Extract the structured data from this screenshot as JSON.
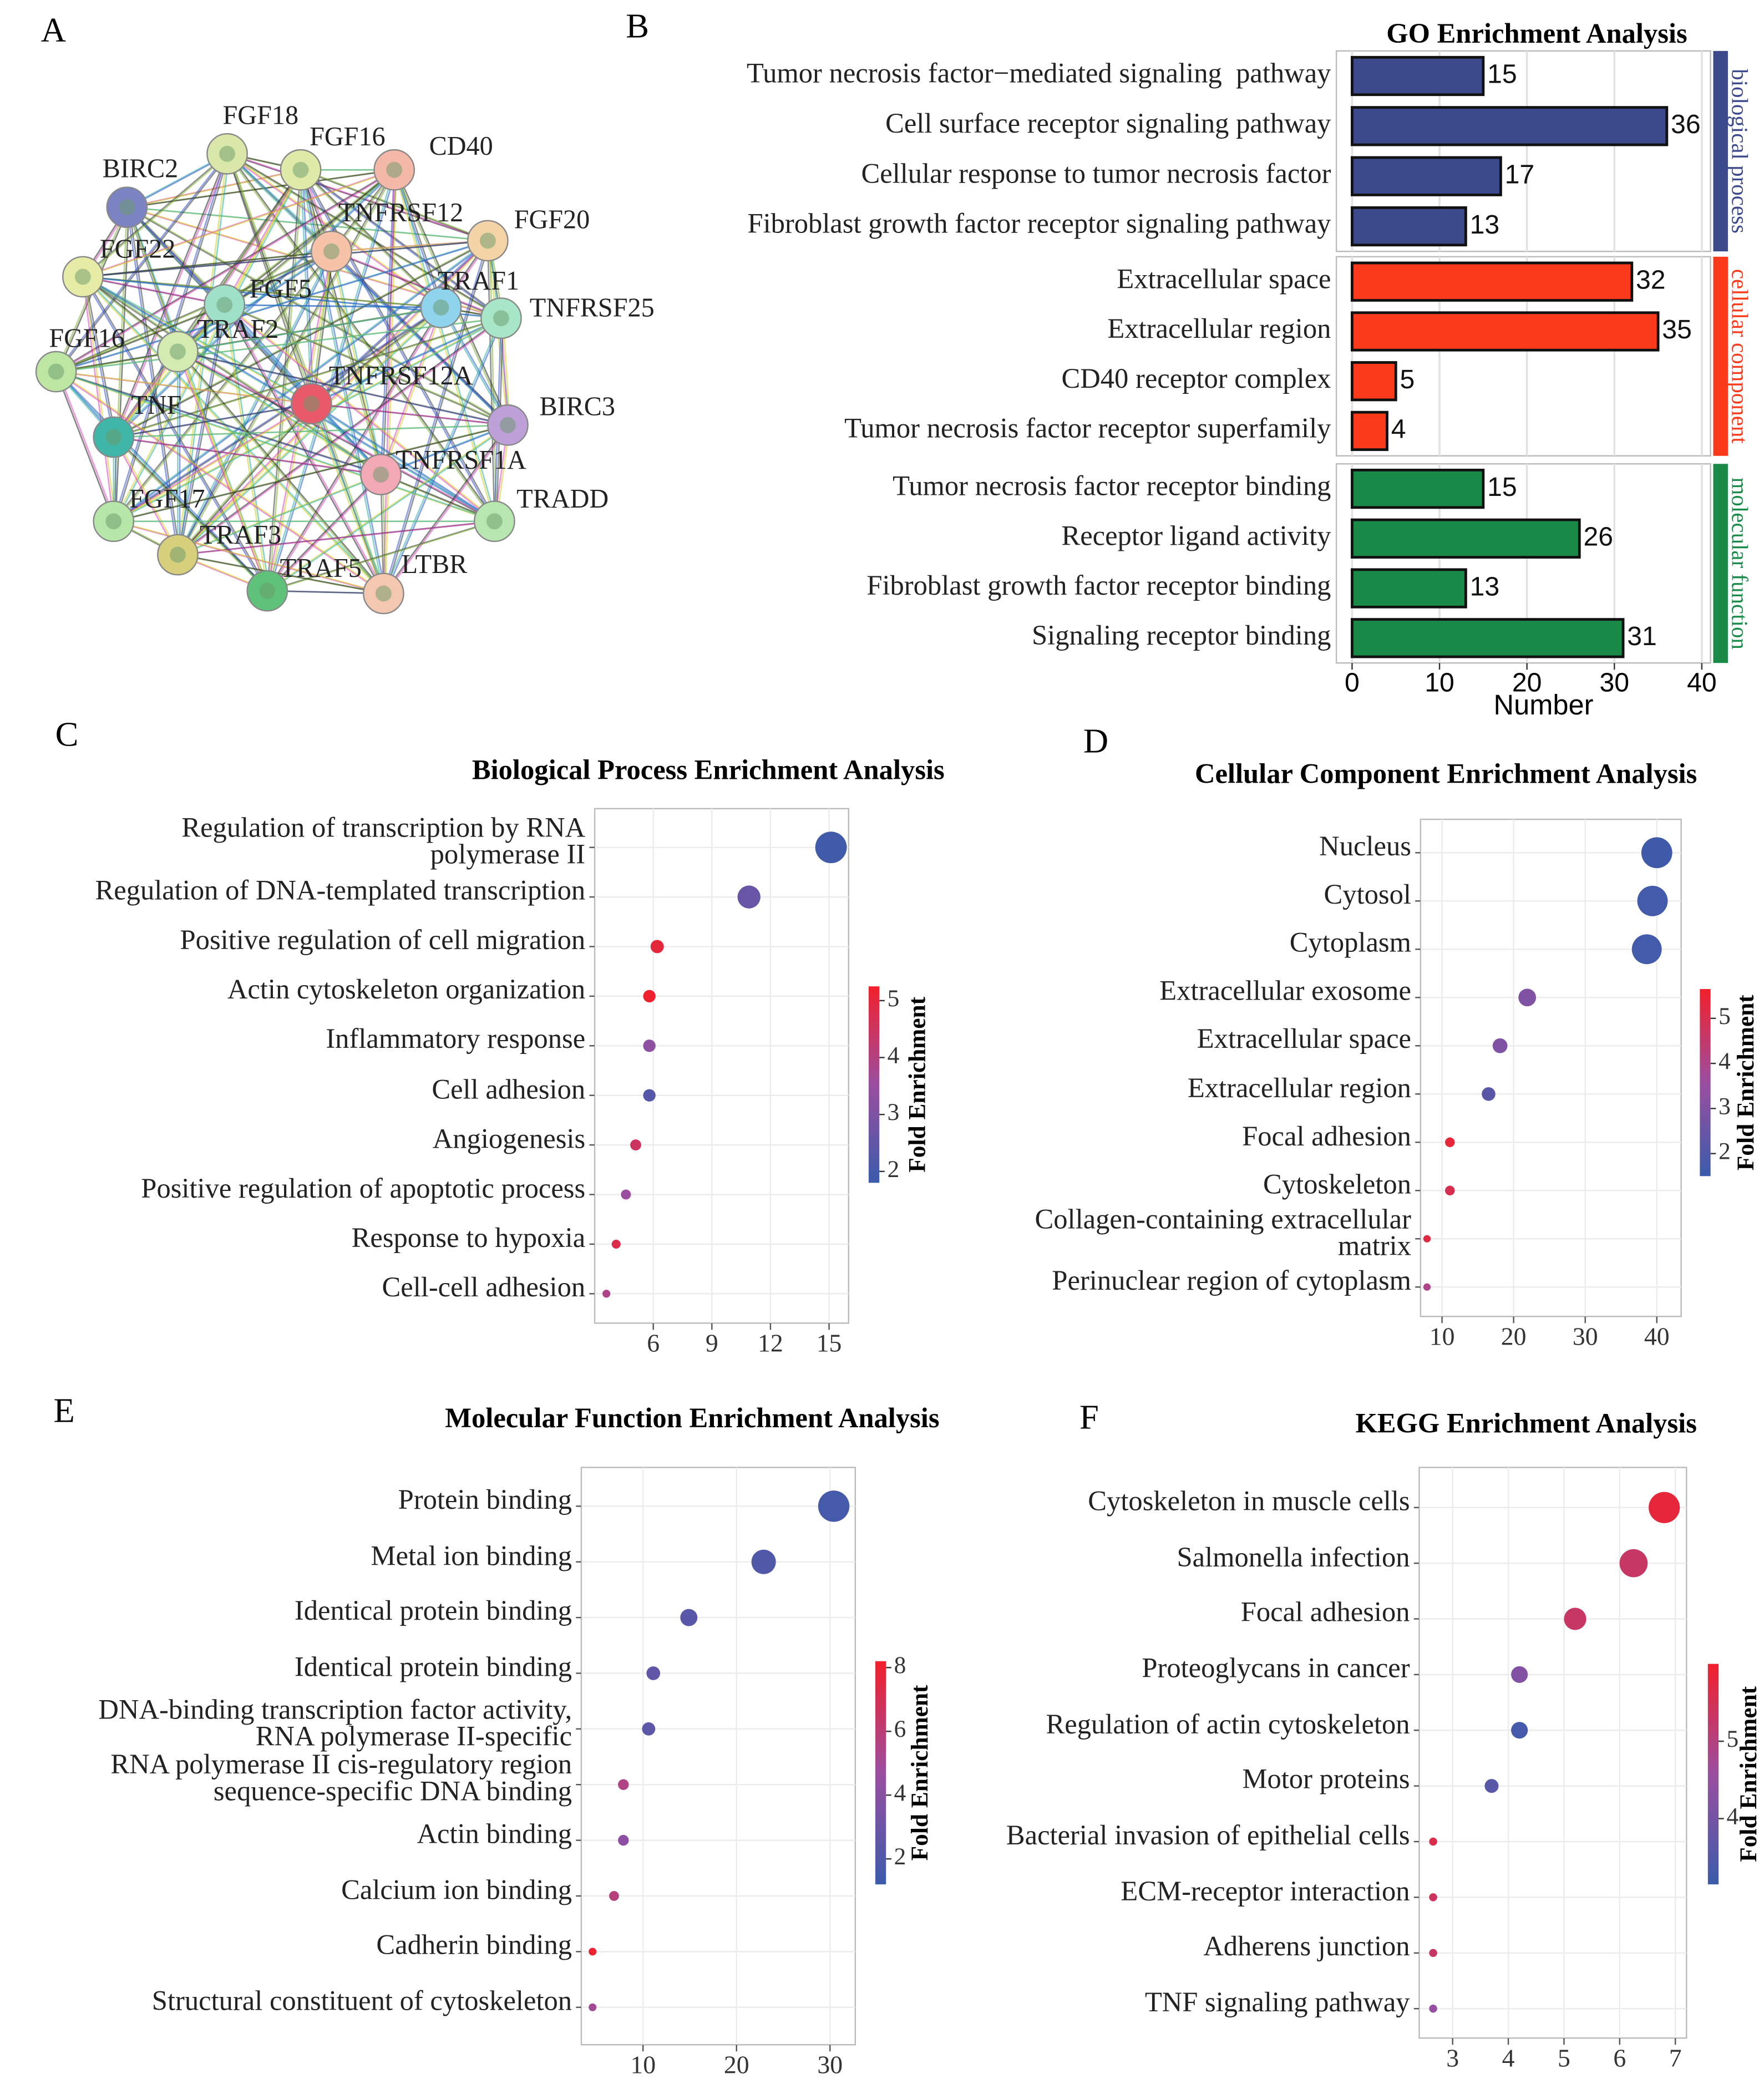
{
  "chart_data": [
    {
      "type": "network",
      "panel": "A",
      "nodes": [
        "BIRC2",
        "FGF18",
        "FGF16",
        "CD40",
        "TNFRSF12",
        "FGF20",
        "FGF22",
        "FGF5",
        "TRAF1",
        "TNFRSF25",
        "FGF16",
        "TRAF2",
        "TNF",
        "TNFRSF12A",
        "BIRC3",
        "TNFRSF1A",
        "TRADD",
        "FGF17",
        "TRAF3",
        "TRAF5",
        "LTBR"
      ]
    },
    {
      "type": "grouped_hbar",
      "panel": "B",
      "title": "GO Enrichment Analysis",
      "xlabel": "Number",
      "xlim": [
        -1.8,
        41
      ],
      "xticks": [
        0,
        10,
        20,
        30,
        40
      ],
      "groups": [
        {
          "name": "biological process",
          "color": "#3c4a8c",
          "categories": [
            "Tumor necrosis factor−mediated signaling  pathway",
            "Cell surface receptor signaling pathway",
            "Cellular response to tumor necrosis factor",
            "Fibroblast growth factor receptor signaling pathway"
          ],
          "values": [
            15,
            36,
            17,
            13
          ]
        },
        {
          "name": "cellular component",
          "color": "#fb3a1c",
          "categories": [
            "Extracellular space",
            "Extracellular region",
            "CD40 receptor complex",
            "Tumor necrosis factor receptor superfamily"
          ],
          "values": [
            32,
            35,
            5,
            4
          ]
        },
        {
          "name": "molecular function",
          "color": "#1a8a48",
          "categories": [
            "Tumor necrosis factor receptor binding",
            "Receptor ligand activity",
            "Fibroblast growth factor receptor binding",
            "Signaling receptor binding"
          ],
          "values": [
            15,
            26,
            13,
            31
          ]
        }
      ]
    },
    {
      "type": "dot",
      "panel": "C",
      "title": "Biological Process Enrichment Analysis",
      "categories": [
        "Regulation of transcription by RNA\npolymerase II",
        "Regulation of DNA-templated transcription",
        "Positive regulation of cell migration",
        "Actin cytoskeleton organization",
        "Inflammatory response",
        "Cell adhesion",
        "Angiogenesis",
        "Positive regulation of apoptotic process",
        "Response to hypoxia",
        "Cell-cell adhesion"
      ],
      "values": [
        15.1,
        10.9,
        6.2,
        5.8,
        5.8,
        5.8,
        5.1,
        4.6,
        4.1,
        3.6
      ],
      "fold_enrichment": [
        1.9,
        2.6,
        5.0,
        5.2,
        3.3,
        2.3,
        4.5,
        3.5,
        4.8,
        3.9
      ],
      "xlim": [
        3,
        16
      ],
      "xticks": [
        6,
        9,
        12,
        15
      ],
      "colorbar_label": "Fold Enrichment",
      "clim": [
        1.8,
        5.25
      ],
      "cticks": [
        2,
        3,
        4,
        5
      ],
      "colorscale": [
        "#3b5bab",
        "#9b4ea0",
        "#f2202b"
      ]
    },
    {
      "type": "dot",
      "panel": "D",
      "title": "Cellular Component Enrichment Analysis",
      "categories": [
        "Nucleus",
        "Cytosol",
        "Cytoplasm",
        "Extracellular exosome",
        "Extracellular  space",
        "Extracellular  region",
        "Focal adhesion",
        "Cytoskeleton",
        "Collagen-containing extracellular\nmatrix",
        "Perinuclear region of cytoplasm"
      ],
      "values": [
        40,
        39.4,
        38.6,
        21.9,
        18.1,
        16.5,
        11.1,
        11.1,
        7.9,
        7.9
      ],
      "fold_enrichment": [
        1.6,
        1.7,
        1.7,
        3.0,
        3.0,
        2.2,
        5.4,
        5.0,
        5.2,
        4.0
      ],
      "xlim": [
        7,
        43.4
      ],
      "xticks": [
        10,
        20,
        30,
        40
      ],
      "colorbar_label": "Fold Enrichment",
      "clim": [
        1.5,
        5.65
      ],
      "cticks": [
        2,
        3,
        4,
        5
      ],
      "colorscale": [
        "#3b5bab",
        "#9b4ea0",
        "#f2202b"
      ]
    },
    {
      "type": "dot",
      "panel": "E",
      "title": "Molecular Function Enrichment Analysis",
      "categories": [
        "Protein binding",
        "Metal ion binding",
        "Identical protein binding",
        "Identical protein binding",
        "DNA-binding transcription factor activity,\nRNA polymerase II-specific",
        "RNA polymerase II cis-regulatory region\nsequence-specific DNA binding",
        "Actin binding",
        "Calcium ion binding",
        "Cadherin binding",
        "Structural constituent of cytoskeleton"
      ],
      "values": [
        30.4,
        22.9,
        14.9,
        11.1,
        10.6,
        7.9,
        7.9,
        6.9,
        4.6,
        4.6
      ],
      "fold_enrichment": [
        1.6,
        2.0,
        2.3,
        2.5,
        2.4,
        5.5,
        4.2,
        5.8,
        8.0,
        5.0
      ],
      "xlim": [
        3.4,
        32.7
      ],
      "xticks": [
        10,
        20,
        30
      ],
      "colorbar_label": "Fold Enrichment",
      "clim": [
        1.2,
        8.2
      ],
      "cticks": [
        2,
        4,
        6,
        8
      ],
      "colorscale": [
        "#3b5bab",
        "#9b4ea0",
        "#f2202b"
      ]
    },
    {
      "type": "dot",
      "panel": "F",
      "title": "KEGG Enrichment Analysis",
      "categories": [
        "Cytoskeleton in muscle cells",
        "Salmonella infection",
        "Focal adhesion",
        "Proteoglycans in cancer",
        "Regulation of actin cytoskeleton",
        "Motor proteins",
        "Bacterial invasion of epithelial cells",
        "ECM-receptor interaction",
        "Adherens junction",
        "TNF signaling pathway"
      ],
      "values": [
        6.8,
        6.25,
        5.2,
        4.2,
        4.2,
        3.7,
        2.65,
        2.65,
        2.65,
        2.65
      ],
      "fold_enrichment": [
        5.8,
        5.3,
        5.3,
        4.2,
        3.3,
        3.6,
        5.6,
        5.4,
        5.3,
        4.5
      ],
      "xlim": [
        2.4,
        7.2
      ],
      "xticks": [
        3,
        4,
        5,
        6,
        7
      ],
      "colorbar_label": "Fold Enrichment",
      "clim": [
        3.15,
        6.0
      ],
      "cticks": [
        4,
        5
      ],
      "colorscale": [
        "#3b5bab",
        "#9b4ea0",
        "#f2202b"
      ]
    }
  ]
}
